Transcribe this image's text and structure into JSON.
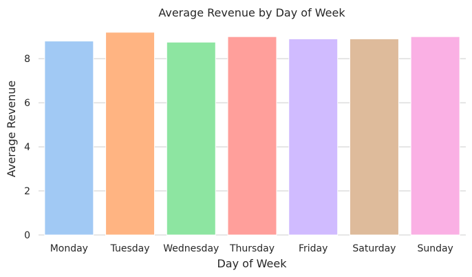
{
  "chart_data": {
    "type": "bar",
    "title": "Average Revenue by Day of Week",
    "xlabel": "Day of Week",
    "ylabel": "Average Revenue",
    "categories": [
      "Monday",
      "Tuesday",
      "Wednesday",
      "Thursday",
      "Friday",
      "Saturday",
      "Sunday"
    ],
    "values": [
      8.8,
      9.2,
      8.75,
      9.0,
      8.9,
      8.9,
      9.0
    ],
    "colors": [
      "#a1c9f4",
      "#ffb482",
      "#8de5a1",
      "#ff9f9b",
      "#d0bbff",
      "#debb9b",
      "#fab0e4"
    ],
    "ylim": [
      0,
      9.6
    ],
    "yticks": [
      0,
      2,
      4,
      6,
      8
    ],
    "grid": "horizontal",
    "legend": "none"
  }
}
